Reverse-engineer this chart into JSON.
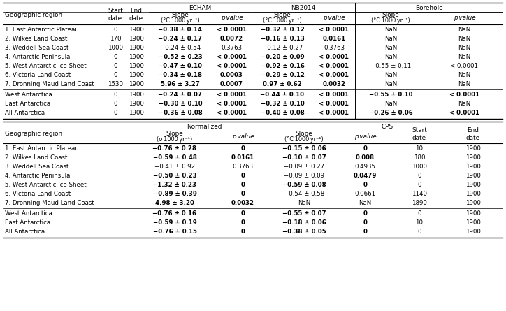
{
  "top_rows": [
    [
      "1. East Antarctic Plateau",
      "0",
      "1900",
      "−0.38 ± 0.14",
      "< 0.0001",
      "−0.32 ± 0.12",
      "< 0.0001",
      "NaN",
      "NaN"
    ],
    [
      "2. Wilkes Land Coast",
      "170",
      "1900",
      "−0.24 ± 0.17",
      "0.0072",
      "−0.16 ± 0.13",
      "0.0161",
      "NaN",
      "NaN"
    ],
    [
      "3. Weddell Sea Coast",
      "1000",
      "1900",
      "−0.24 ± 0.54",
      "0.3763",
      "−0.12 ± 0.27",
      "0.3763",
      "NaN",
      "NaN"
    ],
    [
      "4. Antarctic Peninsula",
      "0",
      "1900",
      "−0.52 ± 0.23",
      "< 0.0001",
      "−0.20 ± 0.09",
      "< 0.0001",
      "NaN",
      "NaN"
    ],
    [
      "5. West Antarctic Ice Sheet",
      "0",
      "1900",
      "−0.47 ± 0.10",
      "< 0.0001",
      "−0.92 ± 0.16",
      "< 0.0001",
      "−0.55 ± 0.11",
      "< 0.0001"
    ],
    [
      "6. Victoria Land Coast",
      "0",
      "1900",
      "−0.34 ± 0.18",
      "0.0003",
      "−0.29 ± 0.12",
      "< 0.0001",
      "NaN",
      "NaN"
    ],
    [
      "7. Dronning Maud Land Coast",
      "1530",
      "1900",
      "5.96 ± 3.27",
      "0.0007",
      "0.97 ± 0.62",
      "0.0032",
      "NaN",
      "NaN"
    ]
  ],
  "top_sum_rows": [
    [
      "West Antarctica",
      "0",
      "1900",
      "−0.24 ± 0.07",
      "< 0.0001",
      "−0.44 ± 0.10",
      "< 0.0001",
      "−0.55 ± 0.10",
      "< 0.0001"
    ],
    [
      "East Antarctica",
      "0",
      "1900",
      "−0.30 ± 0.10",
      "< 0.0001",
      "−0.32 ± 0.10",
      "< 0.0001",
      "NaN",
      "NaN"
    ],
    [
      "All Antarctica",
      "0",
      "1900",
      "−0.36 ± 0.08",
      "< 0.0001",
      "−0.40 ± 0.08",
      "< 0.0001",
      "−0.26 ± 0.06",
      "< 0.0001"
    ]
  ],
  "top_bold": [
    true,
    true,
    false,
    true,
    true,
    true,
    true
  ],
  "top_sum_bold_bore": [
    true,
    false,
    true
  ],
  "bot_rows": [
    [
      "1. East Antarctic Plateau",
      "−0.76 ± 0.28",
      "0",
      "−0.15 ± 0.06",
      "0",
      "10",
      "1900"
    ],
    [
      "2. Wilkes Land Coast",
      "−0.59 ± 0.48",
      "0.0161",
      "−0.10 ± 0.07",
      "0.008",
      "180",
      "1900"
    ],
    [
      "3. Weddell Sea Coast",
      "−0.41 ± 0.92",
      "0.3763",
      "−0.09 ± 0.27",
      "0.4935",
      "1000",
      "1900"
    ],
    [
      "4. Antarctic Peninsula",
      "−0.50 ± 0.23",
      "0",
      "−0.09 ± 0.09",
      "0.0479",
      "0",
      "1900"
    ],
    [
      "5. West Antarctic Ice Sheet",
      "−1.32 ± 0.23",
      "0",
      "−0.59 ± 0.08",
      "0",
      "0",
      "1900"
    ],
    [
      "6. Victoria Land Coast",
      "−0.89 ± 0.39",
      "0",
      "−0.54 ± 0.58",
      "0.0661",
      "1140",
      "1900"
    ],
    [
      "7. Dronning Maud Land Coast",
      "4.98 ± 3.20",
      "0.0032",
      "NaN",
      "NaN",
      "1890",
      "1900"
    ]
  ],
  "bot_sum_rows": [
    [
      "West Antarctica",
      "−0.76 ± 0.16",
      "0",
      "−0.55 ± 0.07",
      "0",
      "0",
      "1900"
    ],
    [
      "East Antarctica",
      "−0.59 ± 0.19",
      "0",
      "−0.18 ± 0.06",
      "0",
      "10",
      "1900"
    ],
    [
      "All Antarctica",
      "−0.76 ± 0.15",
      "0",
      "−0.38 ± 0.05",
      "0",
      "0",
      "1900"
    ]
  ],
  "bot_bold": [
    true,
    true,
    false,
    true,
    true,
    true,
    true
  ],
  "bot_p_bold": [
    true,
    true,
    false,
    true,
    true,
    true,
    true
  ],
  "bot_cps_bold": [
    true,
    true,
    false,
    false,
    true,
    false,
    false
  ],
  "bot_cpsp_bold": [
    true,
    true,
    false,
    true,
    true,
    false,
    false
  ]
}
